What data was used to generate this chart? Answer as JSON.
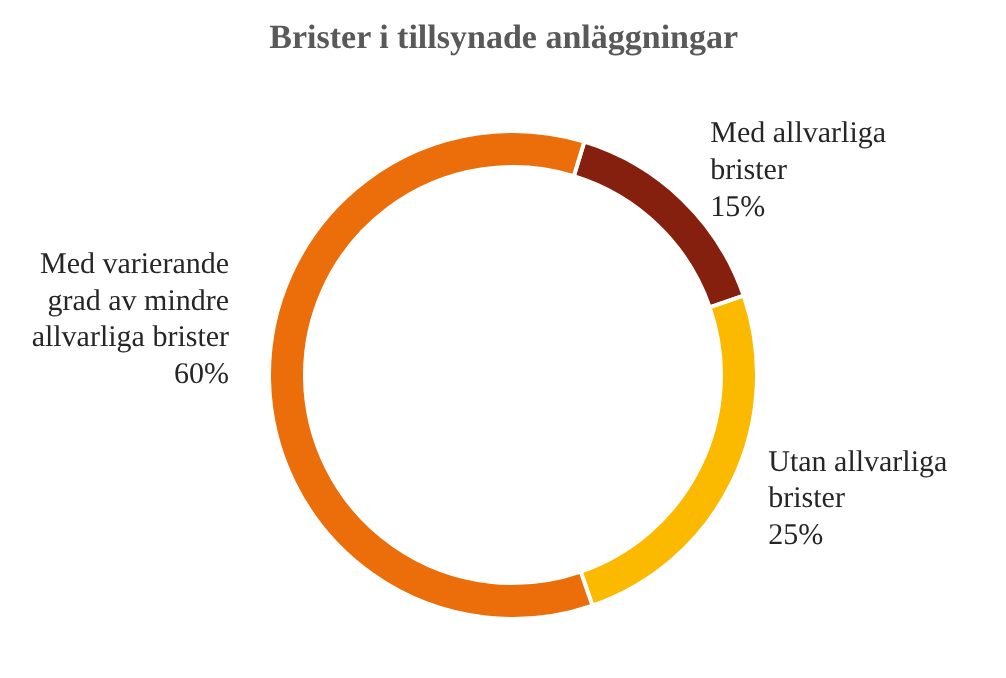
{
  "chart_data": {
    "type": "donut",
    "title": "Brister i tillsynade anläggningar",
    "categories": [
      "Med allvarliga brister",
      "Utan allvarliga brister",
      "Med varierande grad av mindre allvarliga brister"
    ],
    "values": [
      15,
      25,
      60
    ],
    "colors": [
      "#84200d",
      "#fbba00",
      "#eb6e0a"
    ],
    "value_labels": [
      "15%",
      "25%",
      "60%"
    ]
  }
}
